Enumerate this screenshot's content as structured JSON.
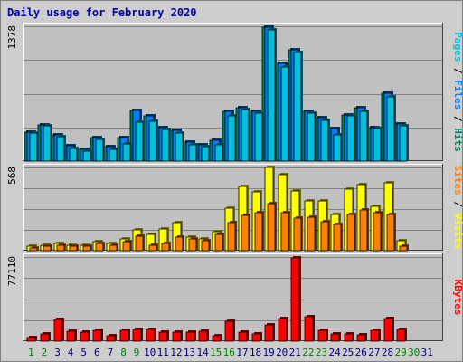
{
  "title": "Daily usage for February 2020",
  "chart_data": {
    "type": "bar",
    "days": [
      "1",
      "2",
      "3",
      "4",
      "5",
      "6",
      "7",
      "8",
      "9",
      "10",
      "11",
      "12",
      "13",
      "14",
      "15",
      "16",
      "17",
      "18",
      "19",
      "20",
      "21",
      "22",
      "23",
      "24",
      "25",
      "26",
      "27",
      "28",
      "29",
      "30",
      "31"
    ],
    "weekend_days": [
      "1",
      "2",
      "8",
      "9",
      "15",
      "16",
      "22",
      "23",
      "29",
      "30"
    ],
    "panels": [
      {
        "id": "hits",
        "ymax_label": "1378",
        "ymax": 1378,
        "ylabel_parts": [
          {
            "text": "Pages",
            "color": "#00c0e0"
          },
          {
            "text": " / ",
            "color": "#000000"
          },
          {
            "text": "Files",
            "color": "#0080ff"
          },
          {
            "text": " / ",
            "color": "#000000"
          },
          {
            "text": "Hits",
            "color": "#008060"
          }
        ],
        "series": [
          {
            "name": "Hits",
            "color": "#008060",
            "values": [
              300,
              370,
              270,
              160,
              120,
              240,
              150,
              240,
              520,
              460,
              340,
              310,
              190,
              170,
              210,
              510,
              550,
              510,
              1365,
              1000,
              1140,
              510,
              440,
              330,
              470,
              550,
              340,
              690,
              380,
              0,
              0
            ]
          },
          {
            "name": "Files",
            "color": "#0080ff",
            "values": [
              300,
              370,
              270,
              160,
              120,
              240,
              150,
              240,
              520,
              460,
              340,
              310,
              190,
              170,
              210,
              510,
              550,
              510,
              1365,
              1000,
              1140,
              510,
              440,
              330,
              470,
              550,
              340,
              690,
              380,
              0,
              0
            ]
          },
          {
            "name": "Pages",
            "color": "#00c0e0",
            "values": [
              290,
              360,
              250,
              130,
              100,
              220,
              120,
              180,
              400,
              410,
              320,
              290,
              170,
              150,
              170,
              460,
              530,
              490,
              1340,
              960,
              1110,
              490,
              420,
              270,
              460,
              510,
              330,
              660,
              360,
              0,
              0
            ]
          }
        ]
      },
      {
        "id": "visits",
        "ymax_label": "568",
        "ymax": 568,
        "ylabel_parts": [
          {
            "text": "Sites",
            "color": "#ff8000"
          },
          {
            "text": " / ",
            "color": "#000000"
          },
          {
            "text": "Visits",
            "color": "#ffff00"
          }
        ],
        "series": [
          {
            "name": "Visits",
            "color": "#ffff00",
            "values": [
              30,
              40,
              50,
              40,
              40,
              60,
              50,
              80,
              140,
              110,
              150,
              190,
              90,
              80,
              130,
              290,
              440,
              400,
              568,
              520,
              410,
              340,
              340,
              250,
              420,
              450,
              300,
              460,
              70,
              0,
              0
            ]
          },
          {
            "name": "Sites",
            "color": "#ff8000",
            "values": [
              20,
              30,
              40,
              30,
              30,
              50,
              40,
              60,
              100,
              40,
              50,
              90,
              80,
              70,
              110,
              190,
              240,
              260,
              320,
              260,
              220,
              230,
              200,
              180,
              250,
              280,
              260,
              250,
              30,
              0,
              0
            ]
          }
        ]
      },
      {
        "id": "kbytes",
        "ymax_label": "77110",
        "ymax": 77110,
        "ylabel_parts": [
          {
            "text": "KBytes",
            "color": "#ff0000"
          }
        ],
        "series": [
          {
            "name": "KBytes",
            "color": "#ff0000",
            "values": [
              3000,
              7000,
              20000,
              9000,
              8000,
              10000,
              5000,
              10000,
              11000,
              11000,
              8000,
              8000,
              8000,
              9000,
              5000,
              18000,
              8000,
              7000,
              15000,
              21000,
              76000,
              22000,
              10000,
              7000,
              7000,
              6000,
              10000,
              21000,
              11000,
              0,
              0
            ]
          }
        ]
      }
    ]
  },
  "colors": {
    "background": "#cdcdcd",
    "plot_bg": "#c0c0c0",
    "grid": "#808080",
    "title": "#0000b0",
    "weekday_label": "#000080",
    "weekend_label": "#008000"
  }
}
